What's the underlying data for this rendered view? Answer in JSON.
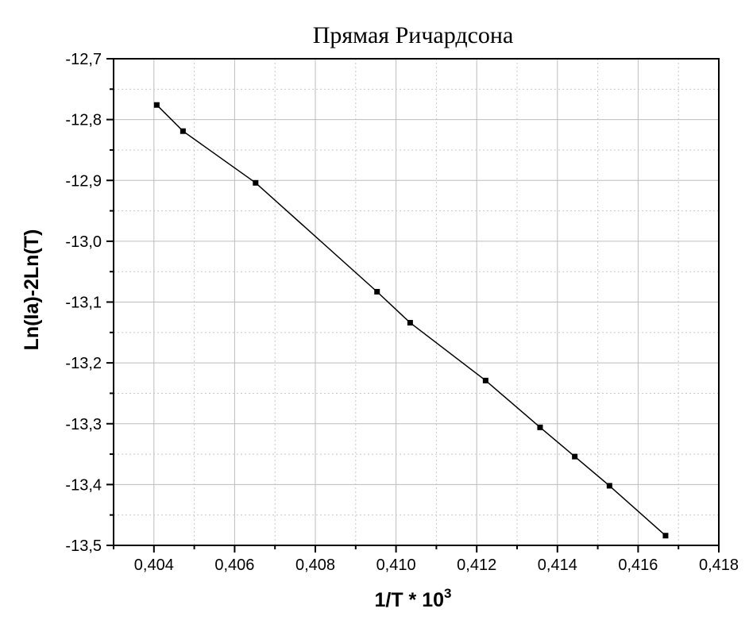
{
  "chart_data": {
    "type": "line",
    "title": "Прямая Ричардсона",
    "xlabel": "1/T * 10",
    "xlabel_superscript": "3",
    "ylabel": "Ln(Ia)-2Ln(T)",
    "xlim": [
      0.403,
      0.418
    ],
    "ylim": [
      -13.5,
      -12.7
    ],
    "x_ticks": [
      0.404,
      0.406,
      0.408,
      0.41,
      0.412,
      0.414,
      0.416,
      0.418
    ],
    "x_tick_labels": [
      "0,404",
      "0,406",
      "0,408",
      "0,410",
      "0,412",
      "0,414",
      "0,416",
      "0,418"
    ],
    "y_ticks": [
      -12.7,
      -12.8,
      -12.9,
      -13.0,
      -13.1,
      -13.2,
      -13.3,
      -13.4,
      -13.5
    ],
    "y_tick_labels": [
      "-12,7",
      "-12,8",
      "-12,9",
      "-13,0",
      "-13,1",
      "-13,2",
      "-13,3",
      "-13,4",
      "-13,5"
    ],
    "grid": true,
    "series": [
      {
        "x": [
          0.40407,
          0.40472,
          0.40652,
          0.40953,
          0.41035,
          0.41222,
          0.41357,
          0.41443,
          0.41529,
          0.41668
        ],
        "y": [
          -12.776,
          -12.819,
          -12.904,
          -13.083,
          -13.134,
          -13.229,
          -13.306,
          -13.354,
          -13.402,
          -13.484
        ]
      }
    ]
  }
}
